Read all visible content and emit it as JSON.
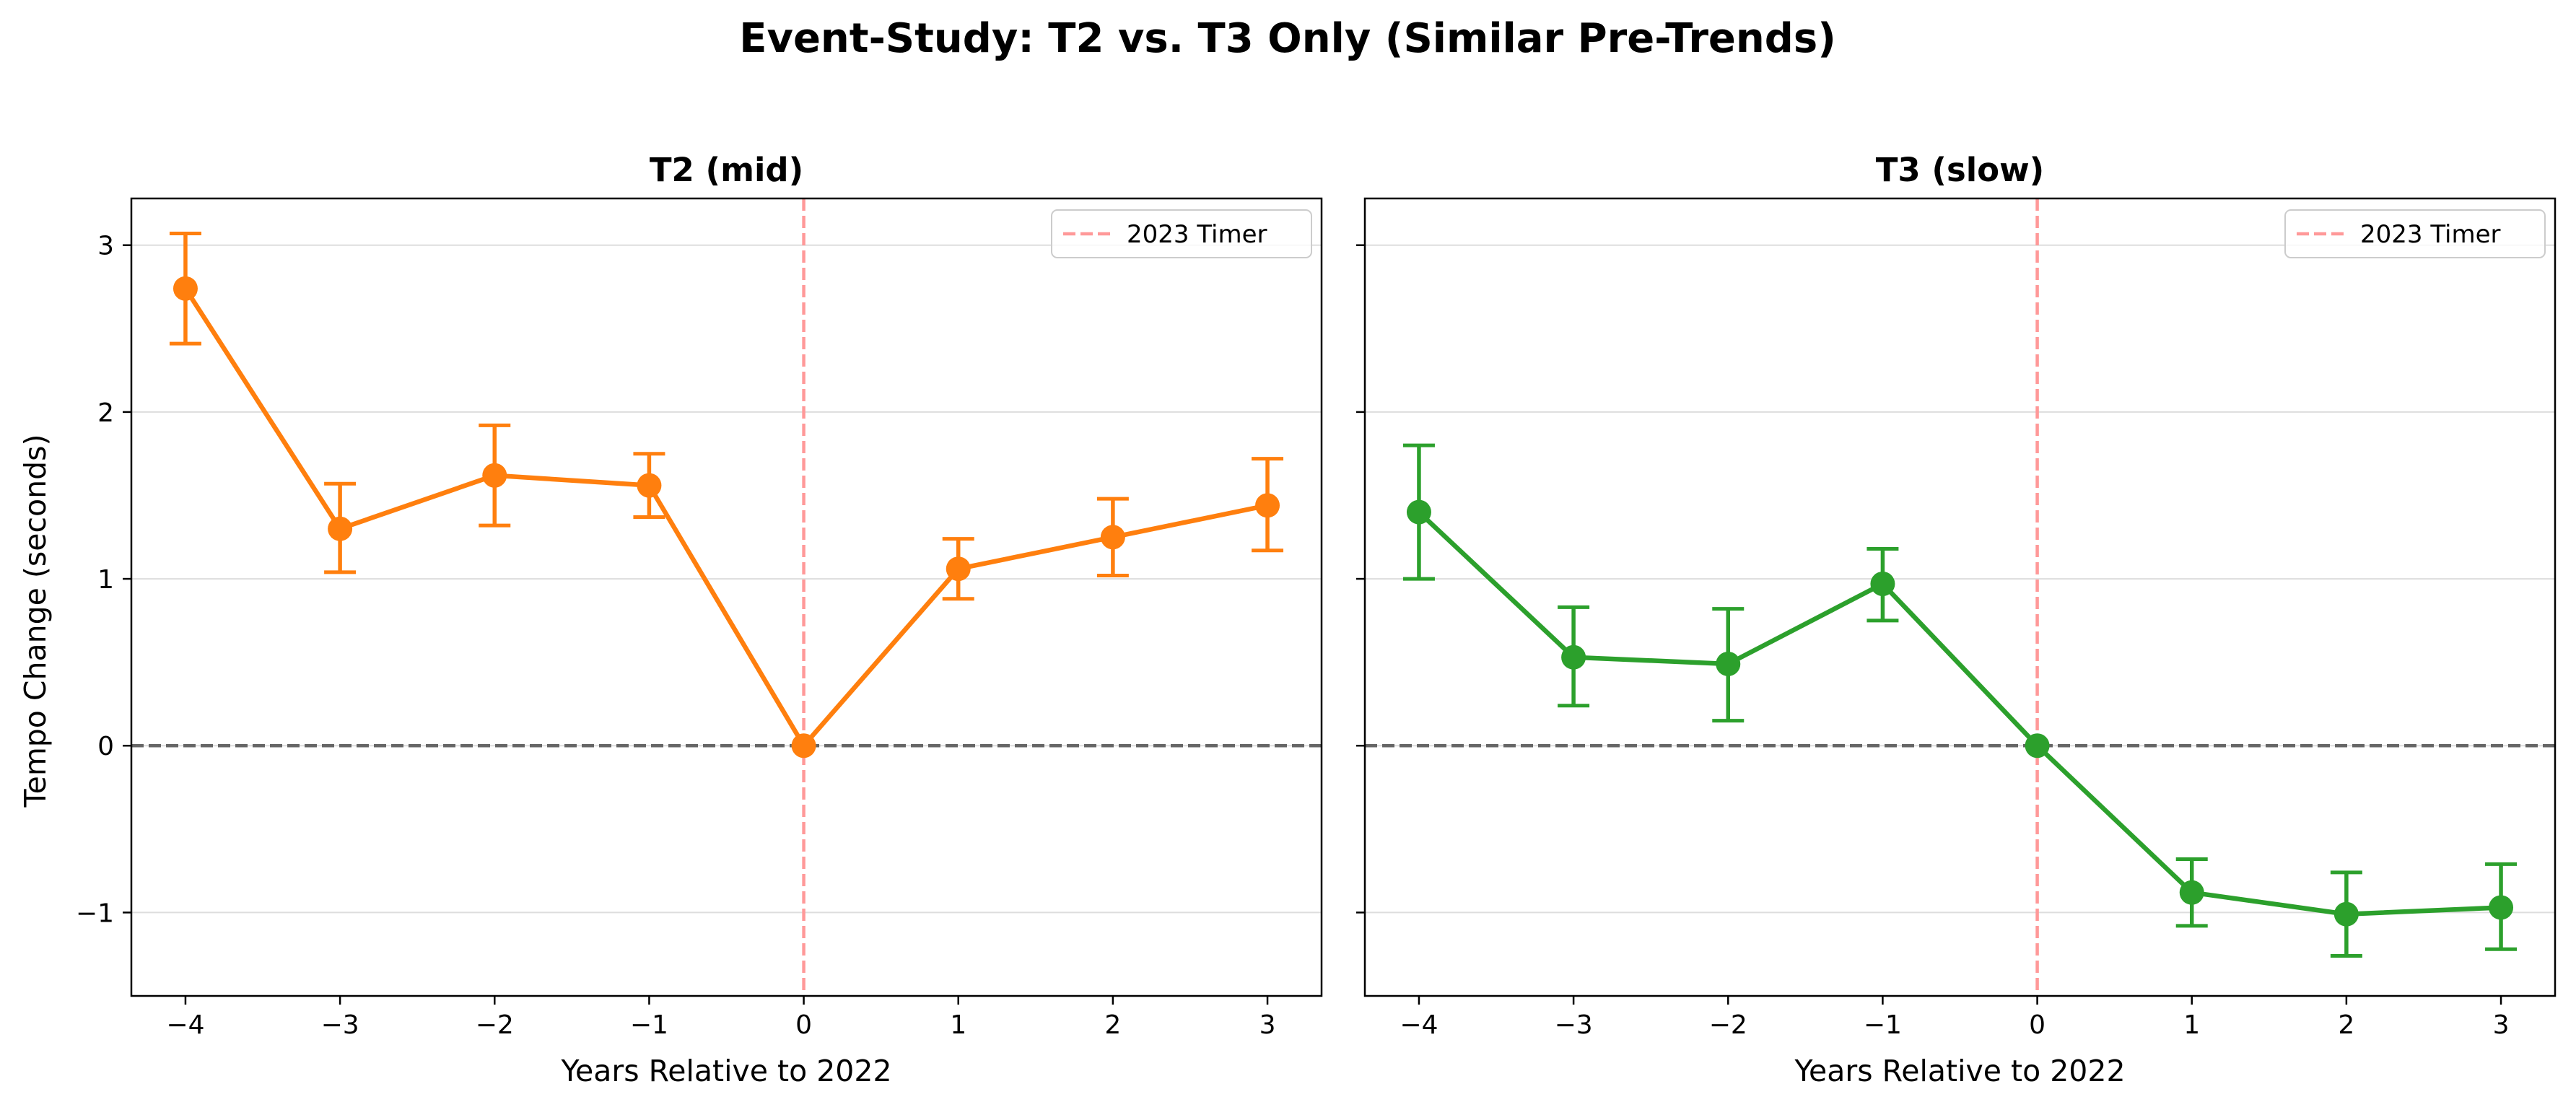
{
  "figure": {
    "title": "Event-Study: T2 vs. T3 Only (Similar Pre-Trends)"
  },
  "style": {
    "reference_line_color": "#ff9999",
    "zero_line_color": "#666666",
    "grid_color": "#dddddd"
  },
  "chart_data": [
    {
      "type": "line",
      "title": "T2 (mid)",
      "xlabel": "Years Relative to 2022",
      "ylabel": "Tempo Change (seconds)",
      "xlim": [
        -4.35,
        3.35
      ],
      "ylim": [
        -1.5,
        3.28
      ],
      "xticks": [
        -4,
        -3,
        -2,
        -1,
        0,
        1,
        2,
        3
      ],
      "yticks": [
        -1,
        0,
        1,
        2,
        3
      ],
      "grid": "horizontal",
      "color": "#ff7f0e",
      "x": [
        -4,
        -3,
        -2,
        -1,
        0,
        1,
        2,
        3
      ],
      "y": [
        2.74,
        1.3,
        1.62,
        1.56,
        0.0,
        1.06,
        1.25,
        1.44
      ],
      "ci_low": [
        2.41,
        1.04,
        1.32,
        1.37,
        0.0,
        0.88,
        1.02,
        1.17
      ],
      "ci_high": [
        3.07,
        1.57,
        1.92,
        1.75,
        0.0,
        1.24,
        1.48,
        1.72
      ],
      "reference_line": {
        "x": 0,
        "label": "2023 Timer"
      },
      "zero_line": {
        "y": 0
      },
      "legend_position": "top-right"
    },
    {
      "type": "line",
      "title": "T3 (slow)",
      "xlabel": "Years Relative to 2022",
      "ylabel": "",
      "xlim": [
        -4.35,
        3.35
      ],
      "ylim": [
        -1.5,
        3.28
      ],
      "xticks": [
        -4,
        -3,
        -2,
        -1,
        0,
        1,
        2,
        3
      ],
      "yticks": [
        -1,
        0,
        1,
        2,
        3
      ],
      "grid": "horizontal",
      "color": "#2ca02c",
      "x": [
        -4,
        -3,
        -2,
        -1,
        0,
        1,
        2,
        3
      ],
      "y": [
        1.4,
        0.53,
        0.49,
        0.97,
        0.0,
        -0.88,
        -1.01,
        -0.97
      ],
      "ci_low": [
        1.0,
        0.24,
        0.15,
        0.75,
        0.0,
        -1.08,
        -1.26,
        -1.22
      ],
      "ci_high": [
        1.8,
        0.83,
        0.82,
        1.18,
        0.0,
        -0.68,
        -0.76,
        -0.71
      ],
      "reference_line": {
        "x": 0,
        "label": "2023 Timer"
      },
      "zero_line": {
        "y": 0
      },
      "legend_position": "top-right"
    }
  ]
}
